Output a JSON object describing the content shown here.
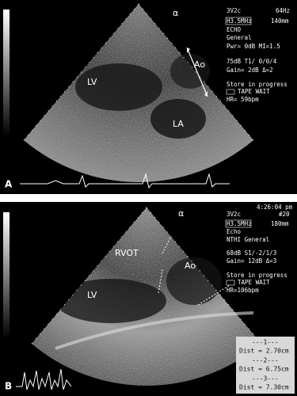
{
  "panel_a": {
    "letter": "A",
    "probe": "3V2c",
    "rate": "64Hz",
    "freq": "H3.5MHz",
    "depth": "140mm",
    "mode": "ECHO",
    "preset": "General",
    "power": "Pwr= 0dB MI=1.5",
    "dyn": "75dB T1/ 0/0/4",
    "gain": "Gain= 2dB Δ=2",
    "store": "Store in progress",
    "tape": "TAPE WAIT",
    "hr": "HR= 59bpm",
    "labels": [
      "LV",
      "Ao",
      "LA"
    ]
  },
  "panel_b": {
    "letter": "B",
    "time": "4:26:04 pm",
    "probe": "3V2c",
    "frame": "#20",
    "freq": "H3.5MHz",
    "depth": "180mm",
    "mode": "Echo",
    "preset": "NTHI General",
    "dyn": "68dB S1/-2/1/3",
    "gain": "Gain= 12dB Δ=3",
    "store": "Store in progress",
    "tape": "TAPE WAIT",
    "hr": "HR=106bpm",
    "labels": [
      "RVOT",
      "Ao",
      "LV"
    ],
    "measurements": [
      {
        "header": "---1---",
        "dist": "Dist = 2.70cm"
      },
      {
        "header": "---2---",
        "dist": "Dist = 6.75cm"
      },
      {
        "header": "---3---",
        "dist": "Dist = 7.30cm"
      }
    ]
  }
}
